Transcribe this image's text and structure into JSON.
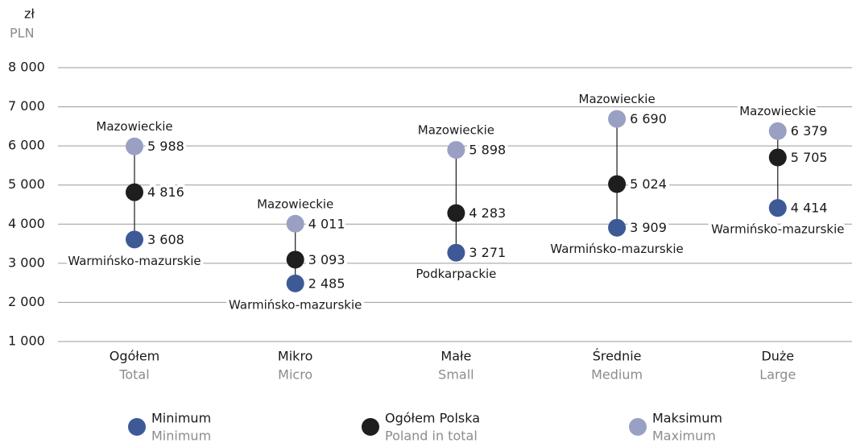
{
  "chart_data": {
    "type": "dot",
    "y_unit": "zł",
    "y_unit_en": "PLN",
    "categories": [
      "Ogółem",
      "Mikro",
      "Małe",
      "Średnie",
      "Duże"
    ],
    "categories_en": [
      "Total",
      "Micro",
      "Small",
      "Medium",
      "Large"
    ],
    "ylim": [
      1000,
      8000
    ],
    "yticks": [
      {
        "value": 1000,
        "label": "1 000"
      },
      {
        "value": 2000,
        "label": "2 000"
      },
      {
        "value": 3000,
        "label": "3 000"
      },
      {
        "value": 4000,
        "label": "4 000"
      },
      {
        "value": 5000,
        "label": "5 000"
      },
      {
        "value": 6000,
        "label": "6 000"
      },
      {
        "value": 7000,
        "label": "7 000"
      },
      {
        "value": 8000,
        "label": "8 000"
      }
    ],
    "grid": true,
    "series": [
      {
        "name": "Minimum",
        "name_en": "Minimum",
        "color": "#3d5a96",
        "values": [
          3608,
          2485,
          3271,
          3909,
          4414
        ],
        "value_labels": [
          "3 608",
          "2 485",
          "3 271",
          "3 909",
          "4 414"
        ],
        "regions": [
          "Warmińsko-mazurskie",
          "Warmińsko-mazurskie",
          "Podkarpackie",
          "Warmińsko-mazurskie",
          "Warmińsko-mazurskie"
        ]
      },
      {
        "name": "Ogółem Polska",
        "name_en": "Poland in total",
        "color": "#1e1e1e",
        "values": [
          4816,
          3093,
          4283,
          5024,
          5705
        ],
        "value_labels": [
          "4 816",
          "3 093",
          "4 283",
          "5 024",
          "5 705"
        ]
      },
      {
        "name": "Maksimum",
        "name_en": "Maximum",
        "color": "#9aa0c4",
        "values": [
          5988,
          4011,
          5898,
          6690,
          6379
        ],
        "value_labels": [
          "5 988",
          "4 011",
          "5 898",
          "6 690",
          "6 379"
        ],
        "regions": [
          "Mazowieckie",
          "Mazowieckie",
          "Mazowieckie",
          "Mazowieckie",
          "Mazowieckie"
        ]
      }
    ]
  }
}
